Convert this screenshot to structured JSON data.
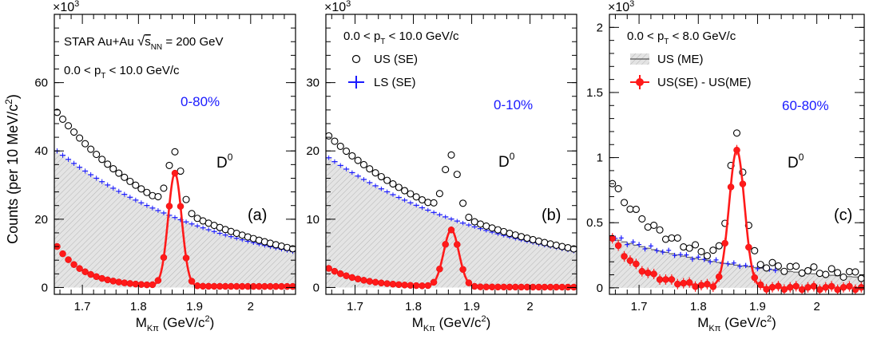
{
  "figure": {
    "ylabel_main": "Counts (per 10 MeV/c",
    "ylabel_sup": "2",
    "ylabel_close": ")",
    "xlabel_main": "M",
    "xlabel_sub": "Kπ",
    "xlabel_unit": " (GeV/c",
    "xlabel_sup": "2",
    "xlabel_close": ")",
    "multiplier_base": "×10",
    "multiplier_exp": "3"
  },
  "chart_data": [
    {
      "type": "scatter",
      "panel_label": "(a)",
      "centrality": "0-80%",
      "particle": "D",
      "particle_sup": "0",
      "info_line1_prefix": "STAR Au+Au ",
      "info_line1_sqrt": "√",
      "info_line1_s": "s",
      "info_line1_sub": "NN",
      "info_line1_suffix": " = 200 GeV",
      "pt_prefix": "0.0 < p",
      "pt_sub": "T",
      "pt_suffix": " < 10.0 GeV/c",
      "xlim": [
        1.65,
        2.08
      ],
      "ylim": [
        -2,
        80
      ],
      "xticks": [
        "1.7",
        "1.8",
        "1.9",
        "2"
      ],
      "xtick_values": [
        1.7,
        1.8,
        1.9,
        2.0
      ],
      "yticks": [
        "0",
        "20",
        "40",
        "60"
      ],
      "ytick_values": [
        0,
        20,
        40,
        60
      ],
      "us_se": {
        "x0": 1.655,
        "dx": 0.01,
        "n": 43,
        "base": 40,
        "y_end": 10.8,
        "peak": 16.5,
        "mu": 1.865,
        "sigma": 0.012,
        "y_start": 51
      },
      "ls_se": {
        "x0": 1.655,
        "dx": 0.01,
        "n": 43,
        "y_start": 40,
        "y_end": 10.5
      },
      "diff": {
        "x0": 1.655,
        "dx": 0.01,
        "n": 43,
        "peak": 33,
        "mu": 1.865,
        "sigma": 0.012,
        "y_start": 12,
        "y_end": 0.3,
        "bg_decay": 0.05
      }
    },
    {
      "type": "scatter",
      "panel_label": "(b)",
      "centrality": "0-10%",
      "particle": "D",
      "particle_sup": "0",
      "pt_prefix": "0.0 < p",
      "pt_sub": "T",
      "pt_suffix": " < 10.0 GeV/c",
      "legend": [
        {
          "label": "US (SE)",
          "marker": "open-circle"
        },
        {
          "label": "LS (SE)",
          "marker": "blue-cross"
        }
      ],
      "xlim": [
        1.65,
        2.08
      ],
      "ylim": [
        -1,
        40
      ],
      "xticks": [
        "1.7",
        "1.8",
        "1.9",
        "2"
      ],
      "xtick_values": [
        1.7,
        1.8,
        1.9,
        2.0
      ],
      "yticks": [
        "0",
        "10",
        "20",
        "30"
      ],
      "ytick_values": [
        0,
        10,
        20,
        30
      ],
      "us_se": {
        "x0": 1.655,
        "dx": 0.01,
        "n": 43,
        "base": 19,
        "y_end": 5.5,
        "peak": 8.5,
        "mu": 1.865,
        "sigma": 0.012,
        "y_start": 22
      },
      "ls_se": {
        "x0": 1.655,
        "dx": 0.01,
        "n": 43,
        "y_start": 19,
        "y_end": 5.3
      },
      "diff": {
        "x0": 1.655,
        "dx": 0.01,
        "n": 43,
        "peak": 8.3,
        "mu": 1.865,
        "sigma": 0.013,
        "y_start": 2.8,
        "y_end": 0.05,
        "bg_decay": 0.06
      }
    },
    {
      "type": "scatter",
      "panel_label": "(c)",
      "centrality": "60-80%",
      "particle": "D",
      "particle_sup": "0",
      "pt_prefix": "0.0 < p",
      "pt_sub": "T",
      "pt_suffix": " < 8.0 GeV/c",
      "legend": [
        {
          "label": "US (ME)",
          "marker": "gray-band"
        },
        {
          "label": "US(SE) - US(ME)",
          "marker": "red-dot"
        }
      ],
      "xlim": [
        1.65,
        2.08
      ],
      "ylim": [
        -0.05,
        2.1
      ],
      "xticks": [
        "1.7",
        "1.8",
        "1.9",
        "2"
      ],
      "xtick_values": [
        1.7,
        1.8,
        1.9,
        2.0
      ],
      "yticks": [
        "0",
        "0.5",
        "1",
        "1.5",
        "2"
      ],
      "ytick_values": [
        0,
        0.5,
        1,
        1.5,
        2
      ],
      "us_se": {
        "x0": 1.655,
        "dx": 0.01,
        "n": 43,
        "base": 0.36,
        "y_end": 0.09,
        "peak": 0.95,
        "mu": 1.865,
        "sigma": 0.013,
        "y_start": 0.78
      },
      "ls_se": {
        "x0": 1.655,
        "dx": 0.01,
        "n": 43,
        "y_start": 0.38,
        "y_end": 0.08
      },
      "diff": {
        "x0": 1.655,
        "dx": 0.01,
        "n": 43,
        "peak": 1.05,
        "mu": 1.865,
        "sigma": 0.013,
        "y_start": 0.38,
        "y_end": 0.0,
        "bg_decay": 0.05
      }
    }
  ]
}
